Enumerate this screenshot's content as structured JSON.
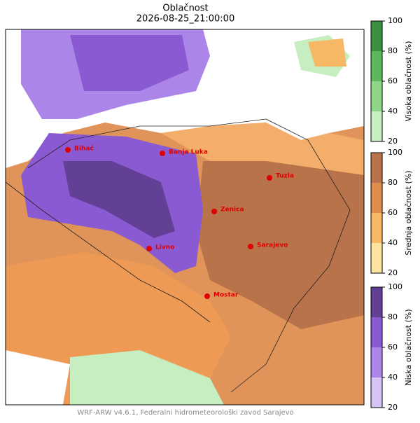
{
  "title": "Oblačnost",
  "subtitle": "2026-08-25_21:00:00",
  "cities": [
    "Bihać",
    "Banja Luka",
    "Tuzla",
    "Zenica",
    "Sarajevo",
    "Livno",
    "Mostar"
  ],
  "colorbars": [
    {
      "label": "Visoka oblačnost (%)",
      "lim": [
        20,
        100
      ],
      "ticks": [
        20,
        40,
        60,
        80,
        100
      ],
      "colors": [
        "#c7eec0",
        "#8fd587",
        "#5cb85a",
        "#3a8f41"
      ]
    },
    {
      "label": "Srednja oblačnost (%)",
      "lim": [
        20,
        100
      ],
      "ticks": [
        20,
        40,
        60,
        80,
        100
      ],
      "colors": [
        "#fde3a0",
        "#f6b865",
        "#e08c4c",
        "#b8734a"
      ]
    },
    {
      "label": "Niska oblačnost (%)",
      "lim": [
        20,
        100
      ],
      "ticks": [
        20,
        40,
        60,
        80,
        100
      ],
      "colors": [
        "#d7c2f5",
        "#ac85e8",
        "#8a5ad2",
        "#624095"
      ]
    }
  ],
  "footer": "WRF-ARW v4.6.1, Federalni hidrometeorološki zavod Sarajevo"
}
